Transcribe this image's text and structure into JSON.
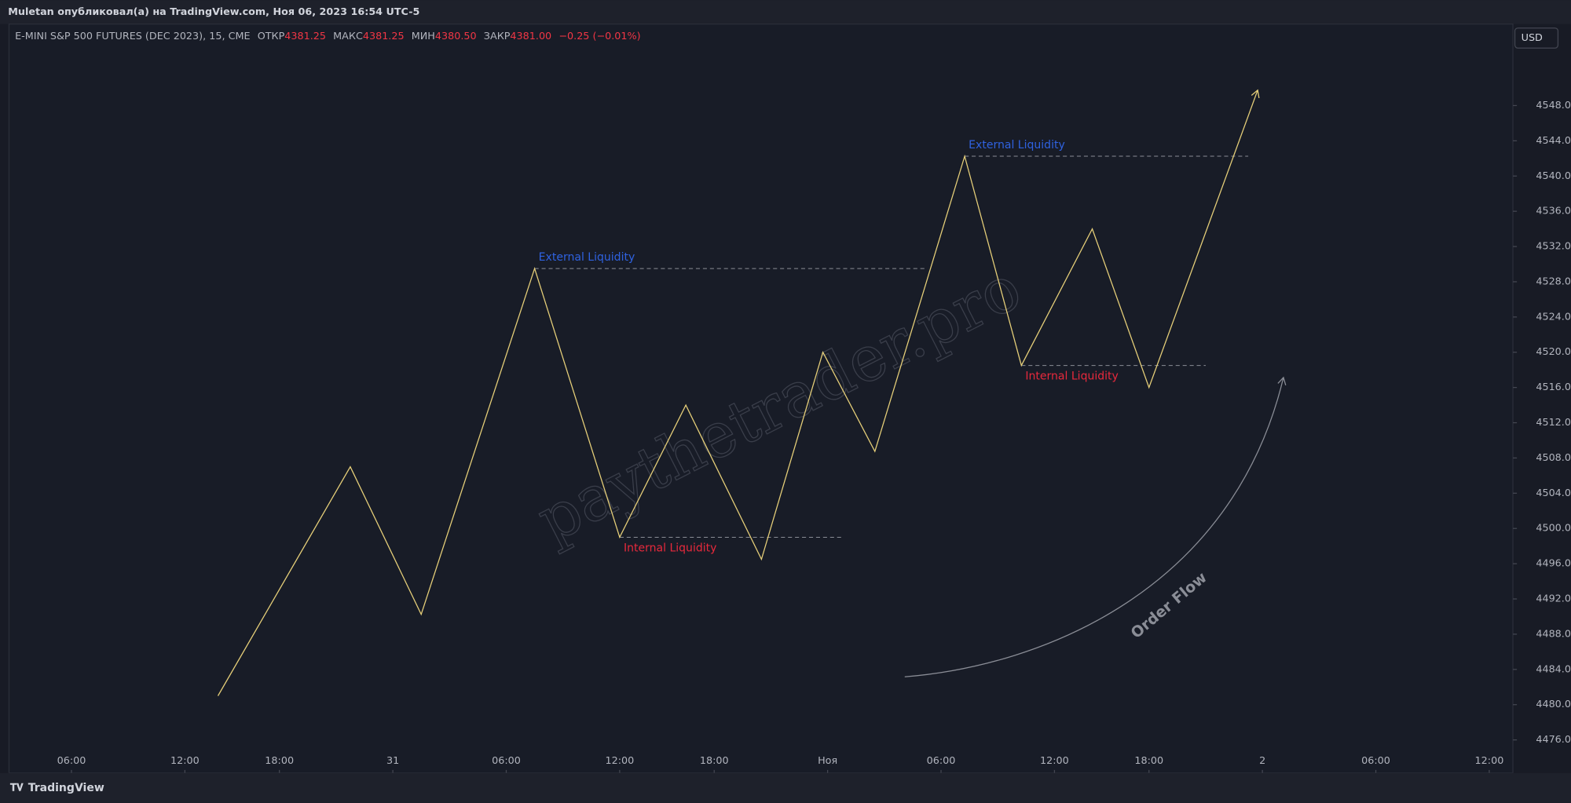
{
  "header": {
    "title": "Muletan опубликовал(а) на TradingView.com, Ноя 06, 2023 16:54 UTC-5",
    "currency": "USD",
    "footer": "TradingView"
  },
  "legend": {
    "symbol": "E-MINI S&P 500 FUTURES (DEC 2023), 15, CME",
    "open_label": "ОТКР",
    "open": "4381.25",
    "high_label": "МАКС",
    "high": "4381.25",
    "low_label": "МИН",
    "low": "4380.50",
    "close_label": "ЗАКР",
    "close": "4381.00",
    "change": "−0.25 (−0.01%)"
  },
  "chart_data": {
    "type": "line",
    "color": "#e6cf79",
    "x": [
      31,
      59,
      74,
      98,
      116,
      130,
      146,
      159,
      170,
      189,
      201,
      216,
      228,
      251
    ],
    "values": [
      4481,
      4507,
      4490.25,
      4529.5,
      4499,
      4514,
      4496.5,
      4520,
      4508.75,
      4542.25,
      4518.5,
      4534,
      4516,
      4549.75
    ],
    "xlim": [
      -13,
      305
    ],
    "ylim": [
      4472.25,
      4557.25
    ],
    "xticks": [
      {
        "value": 0,
        "label": "06:00"
      },
      {
        "value": 24,
        "label": "12:00"
      },
      {
        "value": 44,
        "label": "18:00"
      },
      {
        "value": 68,
        "label": "31"
      },
      {
        "value": 92,
        "label": "06:00"
      },
      {
        "value": 116,
        "label": "12:00"
      },
      {
        "value": 136,
        "label": "18:00"
      },
      {
        "value": 160,
        "label": "Ноя"
      },
      {
        "value": 184,
        "label": "06:00"
      },
      {
        "value": 208,
        "label": "12:00"
      },
      {
        "value": 228,
        "label": "18:00"
      },
      {
        "value": 252,
        "label": "2"
      },
      {
        "value": 276,
        "label": "06:00"
      },
      {
        "value": 300,
        "label": "12:00"
      }
    ],
    "yticks": [
      {
        "value": 4476,
        "label": "4476.00"
      },
      {
        "value": 4480,
        "label": "4480.00"
      },
      {
        "value": 4484,
        "label": "4484.00"
      },
      {
        "value": 4488,
        "label": "4488.00"
      },
      {
        "value": 4492,
        "label": "4492.00"
      },
      {
        "value": 4496,
        "label": "4496.00"
      },
      {
        "value": 4500,
        "label": "4500.00"
      },
      {
        "value": 4504,
        "label": "4504.00"
      },
      {
        "value": 4508,
        "label": "4508.00"
      },
      {
        "value": 4512,
        "label": "4512.00"
      },
      {
        "value": 4516,
        "label": "4516.00"
      },
      {
        "value": 4520,
        "label": "4520.00"
      },
      {
        "value": 4524,
        "label": "4524.00"
      },
      {
        "value": 4528,
        "label": "4528.00"
      },
      {
        "value": 4532,
        "label": "4532.00"
      },
      {
        "value": 4536,
        "label": "4536.00"
      },
      {
        "value": 4540,
        "label": "4540.00"
      },
      {
        "value": 4544,
        "label": "4544.00"
      },
      {
        "value": 4548,
        "label": "4548.00"
      }
    ],
    "levels": [
      {
        "label": "External Liquidity",
        "value": 4529.5,
        "x_start": 98,
        "x_end": 181,
        "color": "#2f62e0",
        "label_side": "above"
      },
      {
        "label": "Internal Liquidity",
        "value": 4499,
        "x_start": 116,
        "x_end": 163,
        "color": "#e8293c",
        "label_side": "below"
      },
      {
        "label": "External Liquidity",
        "value": 4542.25,
        "x_start": 189,
        "x_end": 249,
        "color": "#2f62e0",
        "label_side": "above"
      },
      {
        "label": "Internal Liquidity",
        "value": 4518.5,
        "x_start": 201,
        "x_end": 240,
        "color": "#e8293c",
        "label_side": "below"
      }
    ],
    "watermark": "paythetrader.pro",
    "flow_label": "Order Flow"
  }
}
